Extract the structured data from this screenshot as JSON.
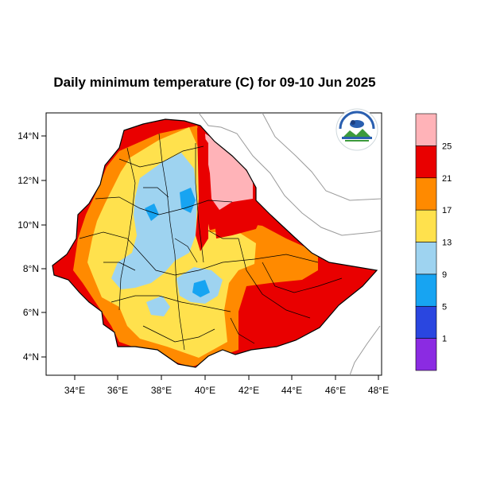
{
  "title": "Daily minimum temperature (C) for 09-10 Jun 2025",
  "map": {
    "lon_ticks": [
      "34°E",
      "36°E",
      "38°E",
      "40°E",
      "42°E",
      "44°E",
      "46°E",
      "48°E"
    ],
    "lat_ticks": [
      "14°N",
      "12°N",
      "10°N",
      "8°N",
      "6°N",
      "4°N"
    ],
    "lon_range": [
      32.9,
      48.1
    ],
    "lat_range": [
      3.1,
      15.1
    ]
  },
  "logo": {
    "name": "ethiopian-meteorology-institute-logo",
    "text": "Ethiopian Meteorology Institute"
  },
  "colorbar": {
    "bins": [
      {
        "color": "#8b2be2"
      },
      {
        "color": "#2a46e0"
      },
      {
        "color": "#17a4f2"
      },
      {
        "color": "#9ed3f0"
      },
      {
        "color": "#ffe14d"
      },
      {
        "color": "#ff8a00"
      },
      {
        "color": "#e90000"
      },
      {
        "color": "#ffb3b8"
      }
    ],
    "labels": [
      "1",
      "5",
      "9",
      "13",
      "17",
      "21",
      "25"
    ]
  }
}
